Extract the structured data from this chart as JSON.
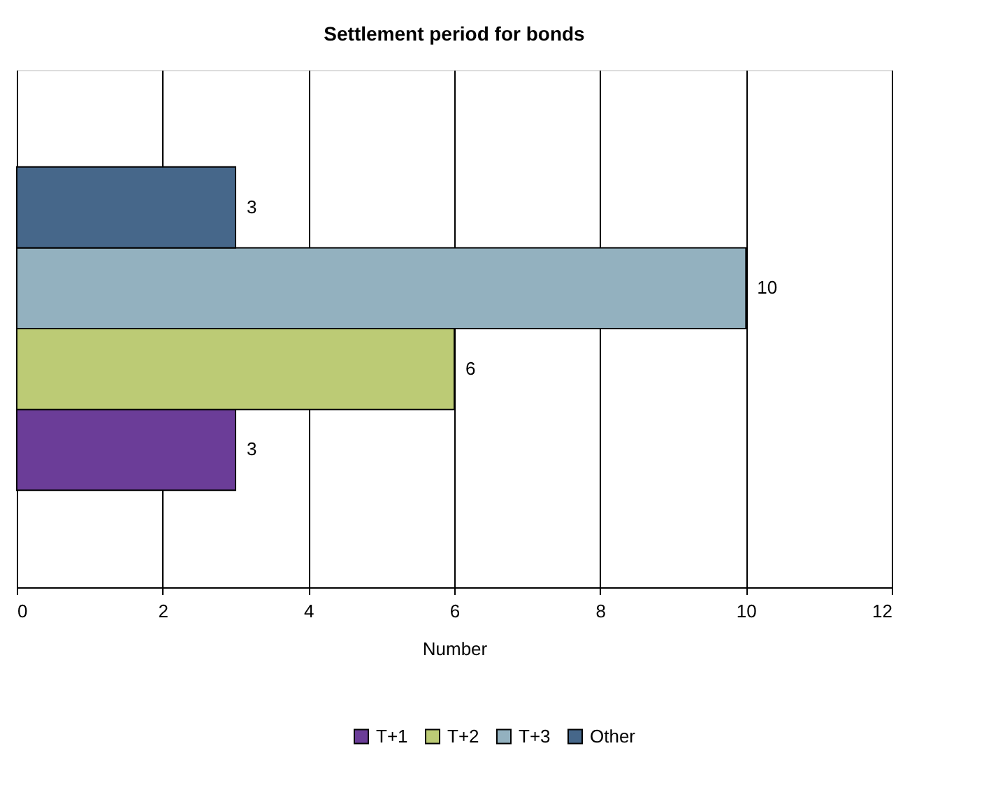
{
  "chart_data": {
    "type": "bar",
    "title": "Settlement period for bonds",
    "xlabel": "Number",
    "orientation": "horizontal",
    "categories": [
      null
    ],
    "series": [
      {
        "name": "T+1",
        "color": "#6b3d98",
        "values": [
          3
        ]
      },
      {
        "name": "T+2",
        "color": "#bccb75",
        "values": [
          6
        ]
      },
      {
        "name": "T+3",
        "color": "#93b1bf",
        "values": [
          10
        ]
      },
      {
        "name": "Other",
        "color": "#46678a",
        "values": [
          3
        ]
      }
    ],
    "xlim": [
      0,
      12
    ],
    "xticks": [
      0,
      2,
      4,
      6,
      8,
      10,
      12
    ],
    "grid": "x",
    "legend": "bottom",
    "data_labels": true
  }
}
